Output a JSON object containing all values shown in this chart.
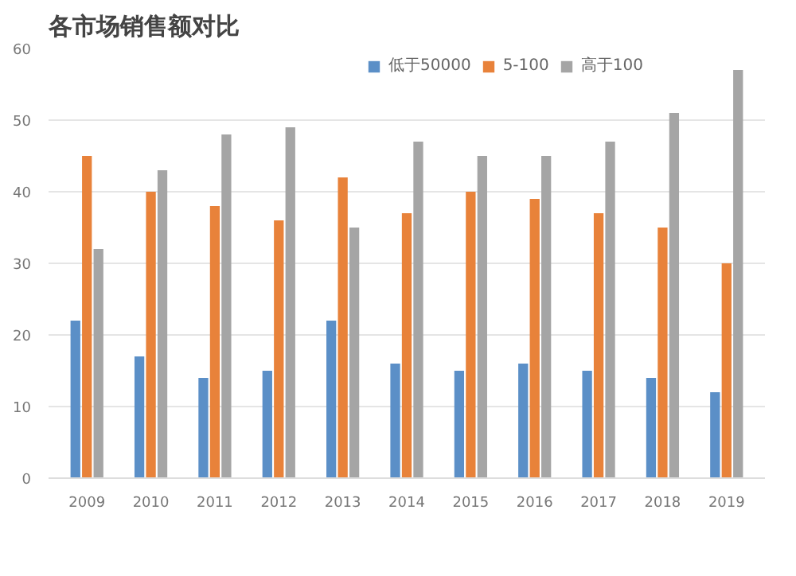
{
  "chart_data": {
    "type": "bar",
    "title": "各市场销售额对比",
    "categories": [
      "2009",
      "2010",
      "2011",
      "2012",
      "2013",
      "2014",
      "2015",
      "2016",
      "2017",
      "2018",
      "2019"
    ],
    "series": [
      {
        "name": "低于50000",
        "color": "#5b8fc7",
        "values": [
          22,
          17,
          14,
          15,
          22,
          16,
          15,
          16,
          15,
          14,
          12
        ]
      },
      {
        "name": "5-100",
        "color": "#e8823a",
        "values": [
          45,
          40,
          38,
          36,
          42,
          37,
          40,
          39,
          37,
          35,
          30
        ]
      },
      {
        "name": "高于100",
        "color": "#a5a5a5",
        "values": [
          32,
          43,
          48,
          49,
          35,
          47,
          45,
          45,
          47,
          51,
          57
        ]
      }
    ],
    "ylim": [
      0,
      60
    ],
    "yticks": [
      0,
      10,
      20,
      30,
      40,
      50,
      60
    ],
    "grid": "y",
    "legend": "top right"
  }
}
